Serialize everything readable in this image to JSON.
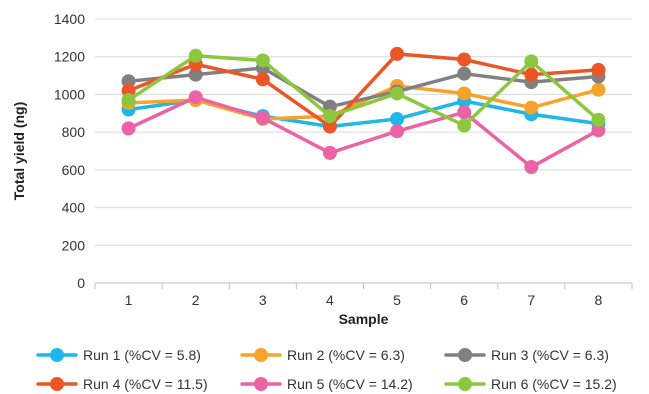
{
  "chart_data": {
    "type": "line",
    "title": "",
    "xlabel": "Sample",
    "ylabel": "Total yield (ng)",
    "categories": [
      "1",
      "2",
      "3",
      "4",
      "5",
      "6",
      "7",
      "8"
    ],
    "ylim": [
      0,
      1400
    ],
    "yticks": [
      "0",
      "200",
      "400",
      "600",
      "800",
      "1000",
      "1200",
      "1400"
    ],
    "grid": true,
    "legend_position": "bottom",
    "series": [
      {
        "name": "Run 1 (%CV = 5.8)",
        "color": "#1FB6E9",
        "values": [
          920,
          970,
          885,
          830,
          870,
          965,
          895,
          845
        ]
      },
      {
        "name": "Run 2 (%CV = 6.3)",
        "color": "#F7A32B",
        "values": [
          955,
          970,
          870,
          885,
          1045,
          1005,
          930,
          1025
        ]
      },
      {
        "name": "Run 3 (%CV = 6.3)",
        "color": "#808080",
        "values": [
          1070,
          1105,
          1140,
          935,
          1015,
          1110,
          1065,
          1095
        ]
      },
      {
        "name": "Run 4 (%CV = 11.5)",
        "color": "#EC5525",
        "values": [
          1020,
          1160,
          1080,
          830,
          1215,
          1185,
          1105,
          1130
        ]
      },
      {
        "name": "Run 5 (%CV = 14.2)",
        "color": "#EC63A5",
        "values": [
          820,
          985,
          875,
          690,
          805,
          905,
          615,
          810
        ]
      },
      {
        "name": "Run 6 (%CV = 15.2)",
        "color": "#8DC63F",
        "values": [
          970,
          1205,
          1180,
          885,
          1005,
          835,
          1175,
          865
        ]
      }
    ]
  }
}
